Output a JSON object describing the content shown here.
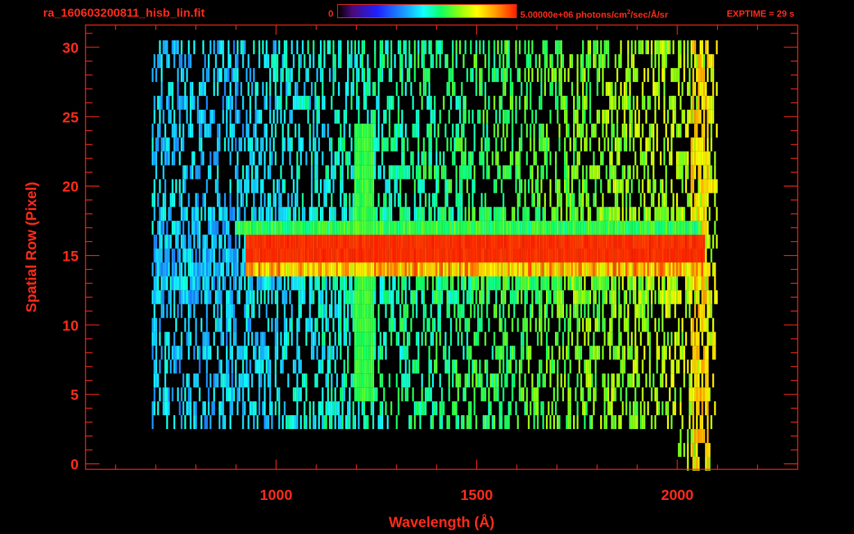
{
  "header": {
    "filename": "ra_160603200811_hisb_lin.fit",
    "colorbar_min": "0",
    "colorbar_max_value": "5.00000e+06 photons/cm",
    "colorbar_max_exp": "2",
    "colorbar_max_unit": "/sec/Å/sr",
    "exptime": "EXPTIME = 29 s"
  },
  "colors": {
    "axis": "#ff2a1a",
    "background": "#000000"
  },
  "chart_data": {
    "type": "heatmap",
    "title": "ra_160603200811_hisb_lin.fit",
    "xlabel": "Wavelength (Å)",
    "ylabel": "Spatial Row (Pixel)",
    "xlim": [
      525,
      2300
    ],
    "ylim": [
      -0.4,
      31.6
    ],
    "x_ticks": [
      1000,
      1500,
      2000
    ],
    "y_ticks": [
      0,
      5,
      10,
      15,
      20,
      25,
      30
    ],
    "colorbar": {
      "min": 0,
      "max": 5000000,
      "unit": "photons/cm^2/sec/Å/sr"
    },
    "colormap": [
      "#000000",
      "#4b0a78",
      "#2020ff",
      "#1aa0ff",
      "#12ffff",
      "#10ff60",
      "#8aff10",
      "#ffff00",
      "#ffa000",
      "#ff2000"
    ],
    "features": {
      "continuum_rows": [
        14,
        16
      ],
      "continuum_start": 920,
      "continuum_end": 2065,
      "lyman_alpha_wavelength": 1216,
      "lyman_alpha_rows": [
        5,
        24
      ],
      "detector_range": [
        690,
        2100
      ],
      "bright_rows": [
        14,
        17
      ]
    }
  }
}
